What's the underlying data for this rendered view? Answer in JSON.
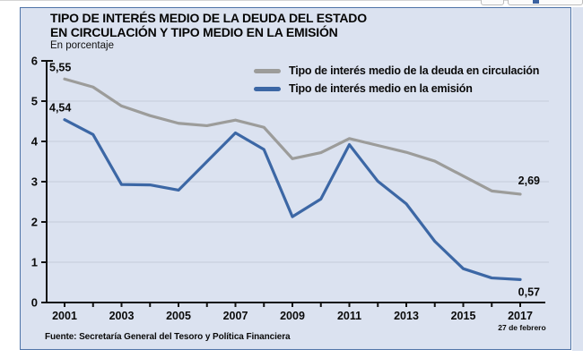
{
  "panel": {
    "title_line1": "TIPO DE INTERÉS MEDIO DE LA DEUDA DEL ESTADO",
    "title_line2": "EN CIRCULACIÓN Y TIPO MEDIO EN LA EMISIÓN",
    "subtitle": "En porcentaje",
    "source": "Fuente: Secretaría General del Tesoro y Política Financiera"
  },
  "colors": {
    "panel_background": "#dbe2f0",
    "panel_border": "#4f74a8",
    "gridline": "#c5ccda",
    "axis": "#111111",
    "text": "#0a0a0a",
    "series_circulacion": "#9c9c9a",
    "series_emision": "#3c67a5"
  },
  "chart_data": {
    "type": "line",
    "title": "TIPO DE INTERÉS MEDIO DE LA DEUDA DEL ESTADO EN CIRCULACIÓN Y TIPO MEDIO EN LA EMISIÓN",
    "subtitle": "En porcentaje",
    "xlabel": "",
    "ylabel": "",
    "x": [
      2001,
      2002,
      2003,
      2004,
      2005,
      2006,
      2007,
      2008,
      2009,
      2010,
      2011,
      2012,
      2013,
      2014,
      2015,
      2016,
      2017
    ],
    "x_tick_years": [
      2001,
      2003,
      2005,
      2007,
      2009,
      2011,
      2013,
      2015,
      2017
    ],
    "x_axis_note": {
      "text": "27 de febrero",
      "year": 2017
    },
    "ylim": [
      0,
      6
    ],
    "yticks": [
      0,
      1,
      2,
      3,
      4,
      5,
      6
    ],
    "grid": "horizontal",
    "legend_position": "top-right-inside",
    "series": [
      {
        "name": "Tipo de interés medio de la deuda en circulación",
        "color": "#9c9c9a",
        "values": [
          5.55,
          5.35,
          4.88,
          4.64,
          4.45,
          4.39,
          4.53,
          4.35,
          3.57,
          3.72,
          4.07,
          3.9,
          3.73,
          3.51,
          3.14,
          2.77,
          2.69
        ]
      },
      {
        "name": "Tipo de interés medio en la emisión",
        "color": "#3c67a5",
        "values": [
          4.54,
          4.17,
          2.93,
          2.92,
          2.79,
          3.5,
          4.21,
          3.8,
          2.13,
          2.57,
          3.92,
          3.01,
          2.45,
          1.52,
          0.84,
          0.61,
          0.57
        ]
      }
    ],
    "annotations": [
      {
        "text": "5,55",
        "series": 0,
        "year": 2001,
        "placement": "above-start"
      },
      {
        "text": "4,54",
        "series": 1,
        "year": 2001,
        "placement": "above-start"
      },
      {
        "text": "2,69",
        "series": 0,
        "year": 2017,
        "placement": "above-end"
      },
      {
        "text": "0,57",
        "series": 1,
        "year": 2017,
        "placement": "below-end"
      }
    ]
  }
}
